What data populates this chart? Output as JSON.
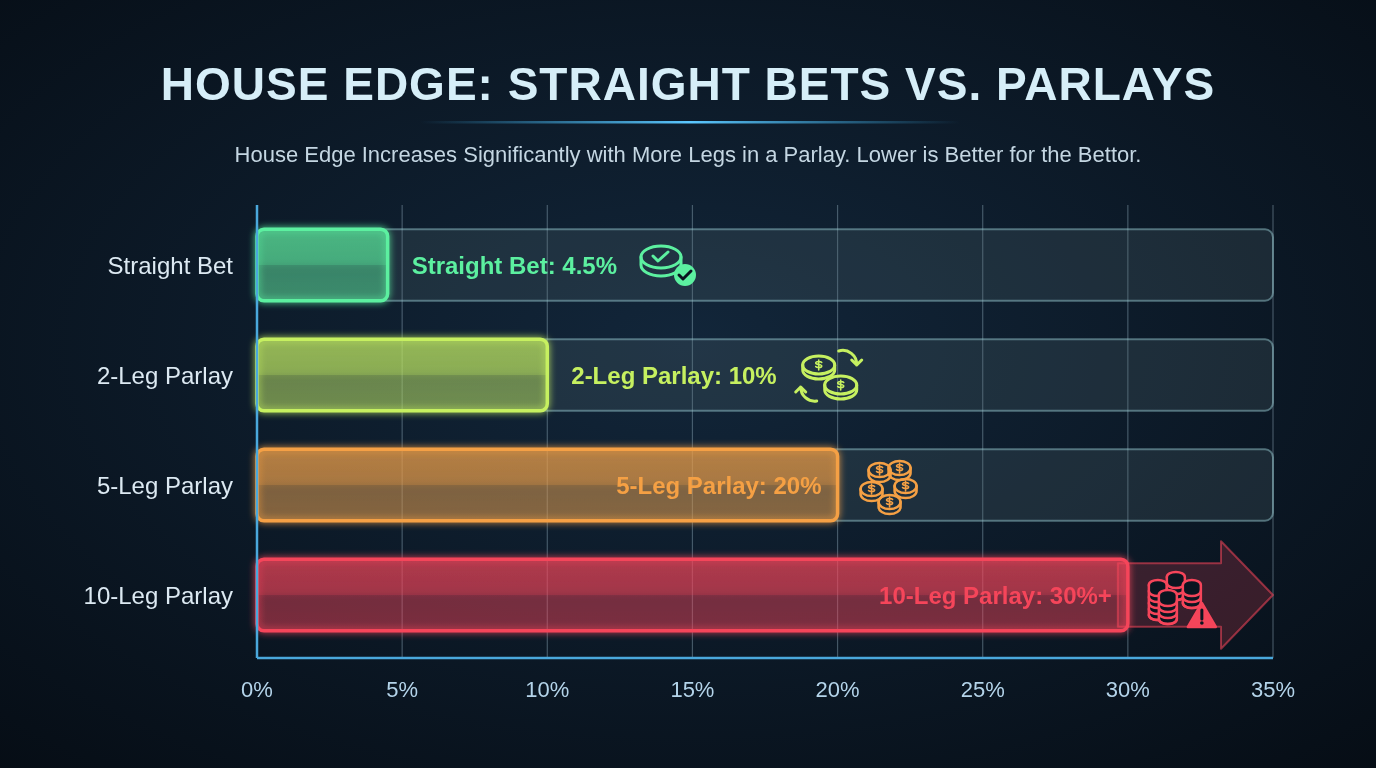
{
  "chart_data": {
    "type": "bar",
    "orientation": "horizontal",
    "title": "HOUSE EDGE: STRAIGHT BETS VS. PARLAYS",
    "subtitle": "House Edge Increases Significantly with More Legs in a Parlay. Lower is Better for the Bettor.",
    "categories": [
      "Straight Bet",
      "2-Leg Parlay",
      "5-Leg Parlay",
      "10-Leg Parlay"
    ],
    "values": [
      4.5,
      10,
      20,
      30
    ],
    "colors": [
      "#5cf0a0",
      "#c6f060",
      "#f5a044",
      "#f5455a"
    ],
    "value_labels": [
      "Straight Bet: 4.5%",
      "2-Leg Parlay: 10%",
      "5-Leg Parlay: 20%",
      "10-Leg Parlay: 30%+"
    ],
    "xlim": [
      0,
      35
    ],
    "xticks": [
      {
        "value": 0,
        "label": "0%"
      },
      {
        "value": 5,
        "label": "5%"
      },
      {
        "value": 10,
        "label": "10%"
      },
      {
        "value": 15,
        "label": "15%"
      },
      {
        "value": 20,
        "label": "20%"
      },
      {
        "value": 25,
        "label": "25%"
      },
      {
        "value": 30,
        "label": "30%"
      },
      {
        "value": 35,
        "label": "35%"
      }
    ],
    "grid": "x"
  }
}
